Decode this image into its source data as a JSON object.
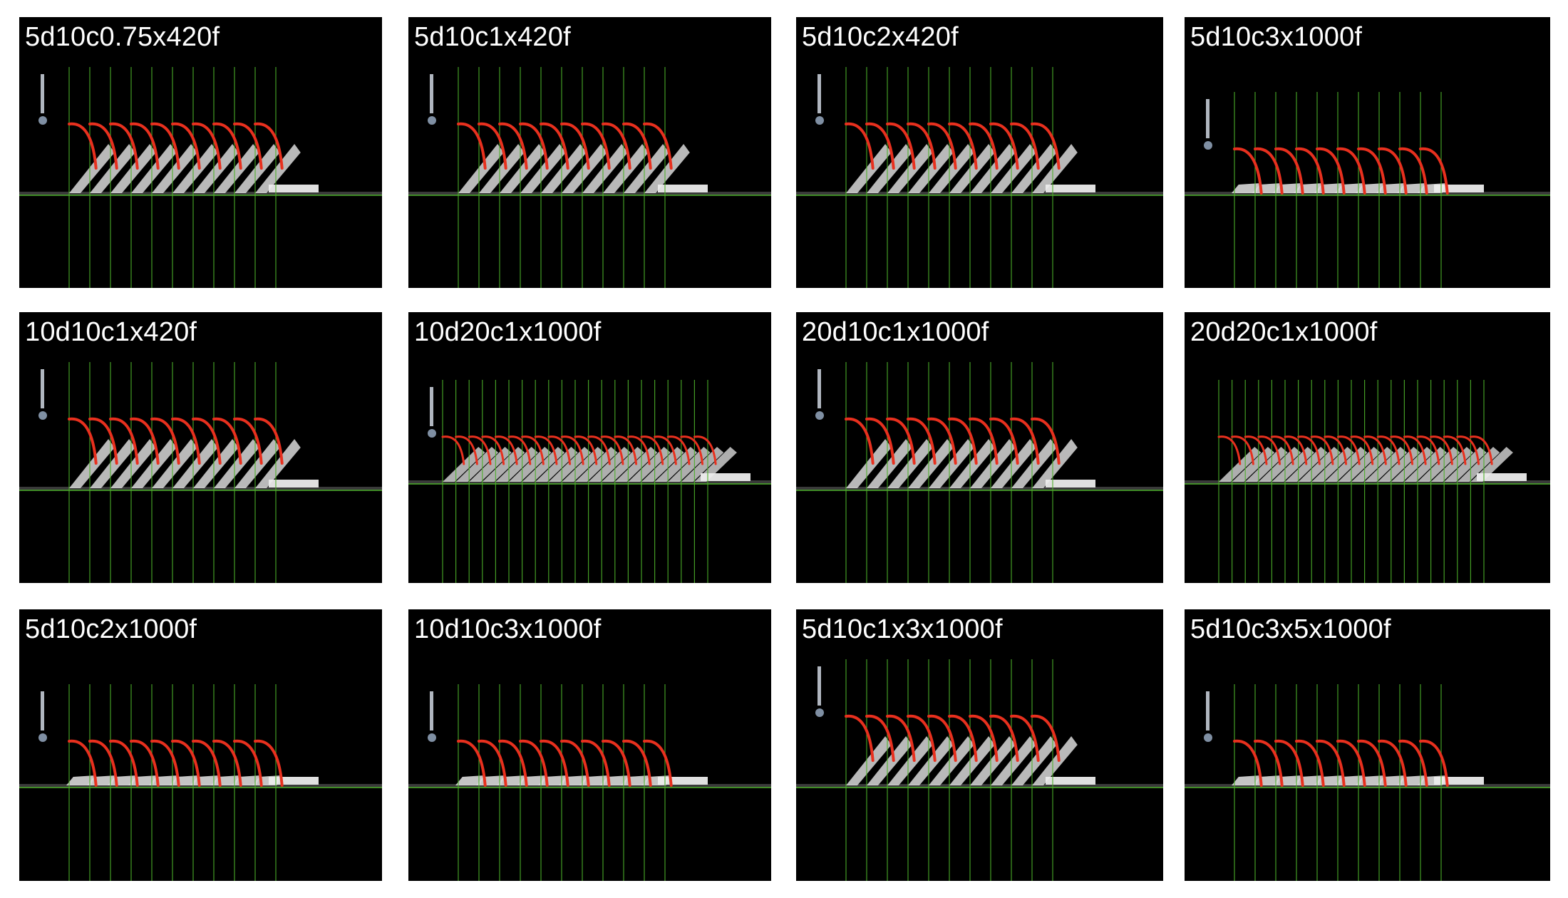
{
  "panels": [
    {
      "label": "5d10c0.75x420f",
      "rows": 1,
      "lines": 11,
      "style": "tilt"
    },
    {
      "label": "5d10c1x420f",
      "rows": 1,
      "lines": 11,
      "style": "tilt"
    },
    {
      "label": "5d10c2x420f",
      "rows": 1,
      "lines": 11,
      "style": "tilt"
    },
    {
      "label": "5d10c3x1000f",
      "rows": 1,
      "lines": 11,
      "style": "flat"
    },
    {
      "label": "10d10c1x420f",
      "rows": 1,
      "lines": 11,
      "style": "tilt"
    },
    {
      "label": "10d20c1x1000f",
      "rows": 1,
      "lines": 21,
      "style": "dense"
    },
    {
      "label": "20d10c1x1000f",
      "rows": 1,
      "lines": 11,
      "style": "tilt"
    },
    {
      "label": "20d20c1x1000f",
      "rows": 1,
      "lines": 21,
      "style": "dense"
    },
    {
      "label": "5d10c2x1000f",
      "rows": 1,
      "lines": 11,
      "style": "flat"
    },
    {
      "label": "10d10c3x1000f",
      "rows": 1,
      "lines": 11,
      "style": "flat"
    },
    {
      "label": "5d10c1x3x1000f",
      "rows": 1,
      "lines": 11,
      "style": "tilt"
    },
    {
      "label": "5d10c3x5x1000f",
      "rows": 1,
      "lines": 11,
      "style": "sparse"
    }
  ],
  "colors": {
    "panel_bg": "#000000",
    "trajectory": "#e8301e",
    "gridline": "#4caf2a",
    "domino": "#d9d9d9",
    "label": "#ffffff"
  }
}
